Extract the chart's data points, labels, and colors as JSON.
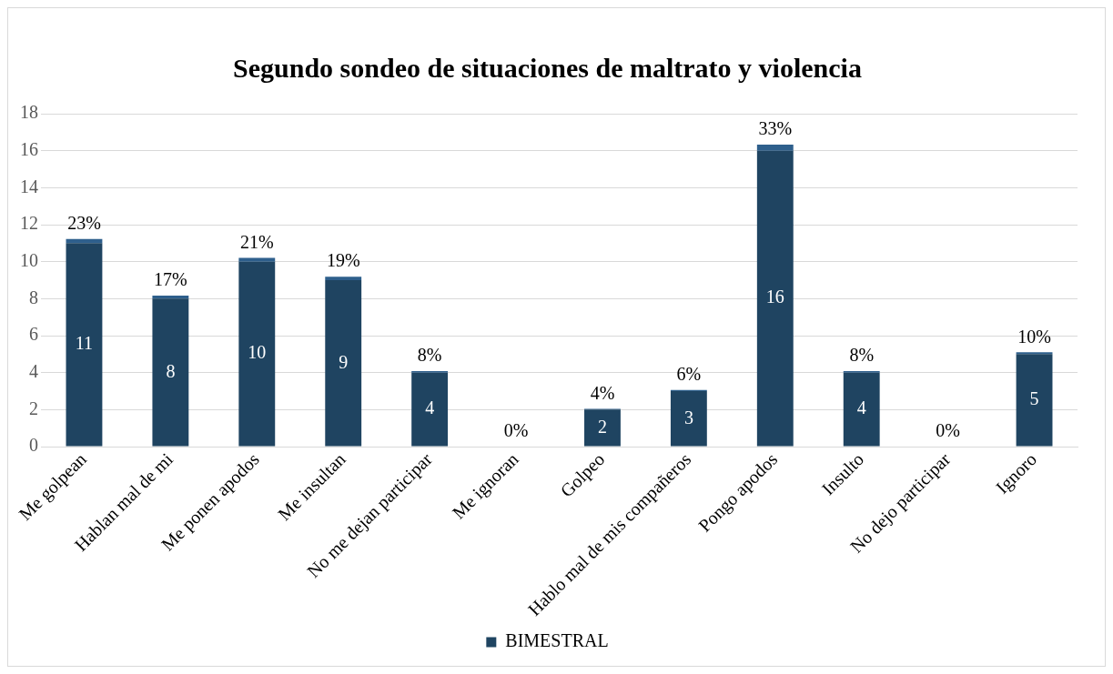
{
  "chart_data": {
    "type": "bar",
    "title": "Segundo sondeo de situaciones de maltrato y violencia",
    "categories": [
      "Me golpean",
      "Hablan mal de mi",
      "Me ponen apodos",
      "Me insultan",
      "No me dejan participar",
      "Me ignoran",
      "Golpeo",
      "Hablo mal de mis compañeros",
      "Pongo apodos",
      "Insulto",
      "No dejo participar",
      "Ignoro"
    ],
    "series": [
      {
        "name": "BIMESTRAL",
        "color": "#1f4461",
        "values": [
          11,
          8,
          10,
          9,
          4,
          0,
          2,
          3,
          16,
          4,
          0,
          5
        ],
        "value_labels": [
          "11",
          "8",
          "10",
          "9",
          "4",
          null,
          "2",
          "3",
          "16",
          "4",
          null,
          "5"
        ]
      },
      {
        "color": "#2e5f8c",
        "values": [
          0.23,
          0.17,
          0.21,
          0.19,
          0.08,
          0,
          0.04,
          0.06,
          0.33,
          0.08,
          0,
          0.1
        ],
        "value_labels": [
          "23%",
          "17%",
          "21%",
          "19%",
          "8%",
          "0%",
          "4%",
          "6%",
          "33%",
          "8%",
          "0%",
          "10%"
        ]
      }
    ],
    "stacked": true,
    "ylim": [
      0,
      18
    ],
    "yticks": [
      0,
      2,
      4,
      6,
      8,
      10,
      12,
      14,
      16,
      18
    ],
    "grid": "y",
    "legend": "bottom"
  }
}
